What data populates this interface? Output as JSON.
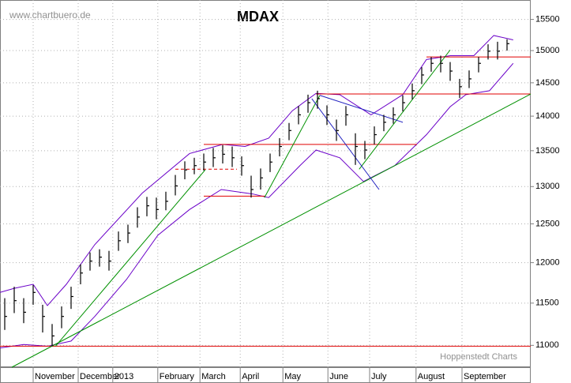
{
  "chart_data": {
    "type": "ohlc",
    "title": "MDAX",
    "source": "www.chartbuero.de",
    "credit": "Hoppenstedt Charts",
    "log_scale": true,
    "grid": true,
    "bar_color": "#000000",
    "xlim": [
      0,
      112
    ],
    "ylim": [
      10750,
      15820
    ],
    "yticks": [
      11000,
      11500,
      12000,
      12500,
      13000,
      13500,
      14000,
      14500,
      15000,
      15500
    ],
    "xticks": [
      {
        "value": 7,
        "label": "November"
      },
      {
        "value": 16.5,
        "label": "December"
      },
      {
        "value": 23.8,
        "label": "2013"
      },
      {
        "value": 33.3,
        "label": "February"
      },
      {
        "value": 42.2,
        "label": "March"
      },
      {
        "value": 50.7,
        "label": "April"
      },
      {
        "value": 59.7,
        "label": "May"
      },
      {
        "value": 69.2,
        "label": "June"
      },
      {
        "value": 78,
        "label": "July"
      },
      {
        "value": 87.8,
        "label": "August"
      },
      {
        "value": 97.5,
        "label": "September"
      }
    ],
    "x": [
      1,
      3,
      5,
      7,
      9,
      11,
      13,
      15,
      17,
      19,
      21,
      23,
      25,
      27,
      29,
      31,
      33,
      35,
      37,
      39,
      41,
      43,
      45,
      47,
      49,
      51,
      53,
      55,
      57,
      59,
      61,
      63,
      65,
      67,
      69,
      71,
      73,
      75,
      77,
      79,
      81,
      83,
      85,
      87,
      89,
      91,
      93,
      95,
      97,
      99,
      101,
      103,
      105,
      107
    ],
    "high": [
      11560,
      11700,
      11560,
      11720,
      11480,
      11250,
      11460,
      11700,
      11980,
      12130,
      12170,
      12150,
      12400,
      12490,
      12720,
      12860,
      12850,
      12930,
      13160,
      13350,
      13400,
      13460,
      13540,
      13580,
      13560,
      13420,
      13150,
      13250,
      13460,
      13680,
      13900,
      14150,
      14320,
      14380,
      14160,
      13950,
      14150,
      13750,
      13640,
      13850,
      14020,
      14130,
      14310,
      14490,
      14740,
      14900,
      14920,
      14820,
      14560,
      14690,
      14900,
      15100,
      15140,
      15180
    ],
    "low": [
      11180,
      11380,
      11260,
      11480,
      11150,
      10990,
      11200,
      11430,
      11730,
      11900,
      11950,
      11900,
      12150,
      12250,
      12450,
      12600,
      12560,
      12680,
      12880,
      13100,
      13170,
      13220,
      13270,
      13320,
      13270,
      13150,
      12850,
      12960,
      13200,
      13420,
      13650,
      13880,
      14050,
      14110,
      13870,
      13640,
      13860,
      13300,
      13380,
      13590,
      13780,
      13890,
      14070,
      14250,
      14480,
      14670,
      14660,
      14530,
      14270,
      14420,
      14660,
      14860,
      14860,
      15000
    ],
    "close": [
      11340,
      11530,
      11390,
      11630,
      11340,
      11110,
      11340,
      11580,
      11870,
      12020,
      12070,
      12020,
      12280,
      12380,
      12590,
      12740,
      12690,
      12800,
      13010,
      13230,
      13290,
      13340,
      13400,
      13450,
      13400,
      13290,
      12960,
      13120,
      13340,
      13560,
      13790,
      14020,
      14200,
      14260,
      14020,
      13790,
      14020,
      13560,
      13510,
      13730,
      13910,
      14020,
      14200,
      14380,
      14620,
      14800,
      14800,
      14680,
      14440,
      14560,
      14800,
      14990,
      14990,
      15110
    ],
    "bands": [
      {
        "color": "#6a00c8",
        "x": [
          0,
          3,
          7,
          10,
          14,
          20,
          30,
          40,
          47,
          51.7,
          56.7,
          61.7,
          66.7,
          71.7,
          78.3,
          85,
          90,
          95,
          100,
          104.2,
          108.3
        ],
        "values": [
          11630,
          11680,
          11730,
          11470,
          11730,
          12230,
          12910,
          13460,
          13590,
          13560,
          13680,
          14080,
          14340,
          14320,
          14020,
          14320,
          14860,
          14920,
          14920,
          15240,
          15170
        ]
      },
      {
        "color": "#6a00c8",
        "x": [
          0,
          5,
          10,
          15,
          20,
          26.7,
          33.3,
          40,
          46.7,
          53.3,
          56.7,
          63.3,
          66.7,
          71.7,
          76.7,
          83.3,
          90,
          95,
          98.3,
          103.3,
          108.3
        ],
        "values": [
          10970,
          11010,
          10990,
          11050,
          11340,
          11790,
          12350,
          12690,
          12960,
          12900,
          12850,
          13290,
          13510,
          13400,
          13070,
          13290,
          13730,
          14140,
          14320,
          14380,
          14800
        ]
      }
    ],
    "lines": [
      {
        "color": "#e00000",
        "x": [
          0,
          112
        ],
        "values": [
          10990,
          10990
        ]
      },
      {
        "color": "#e00000",
        "x": [
          43,
          88
        ],
        "values": [
          13590,
          13590
        ]
      },
      {
        "color": "#e00000",
        "x": [
          43,
          56
        ],
        "values": [
          12870,
          12870
        ]
      },
      {
        "color": "#e00000",
        "x": [
          37,
          50
        ],
        "values": [
          13240,
          13240
        ],
        "dashed": true
      },
      {
        "color": "#e00000",
        "x": [
          66.7,
          112
        ],
        "values": [
          14330,
          14330
        ]
      },
      {
        "color": "#e00000",
        "x": [
          90,
          112
        ],
        "values": [
          14900,
          14900
        ]
      },
      {
        "color": "#009000",
        "x": [
          2.5,
          112
        ],
        "values": [
          10750,
          14330
        ]
      },
      {
        "color": "#009000",
        "x": [
          11.7,
          43.3
        ],
        "values": [
          10990,
          13230
        ]
      },
      {
        "color": "#009000",
        "x": [
          55.8,
          67.5
        ],
        "values": [
          12850,
          14310
        ]
      },
      {
        "color": "#009000",
        "x": [
          75.8,
          95
        ],
        "values": [
          13240,
          15010
        ]
      },
      {
        "color": "#2020c0",
        "x": [
          67.5,
          85
        ],
        "values": [
          14310,
          13910
        ]
      },
      {
        "color": "#2020c0",
        "x": [
          65.8,
          80
        ],
        "values": [
          14260,
          12960
        ]
      }
    ]
  }
}
